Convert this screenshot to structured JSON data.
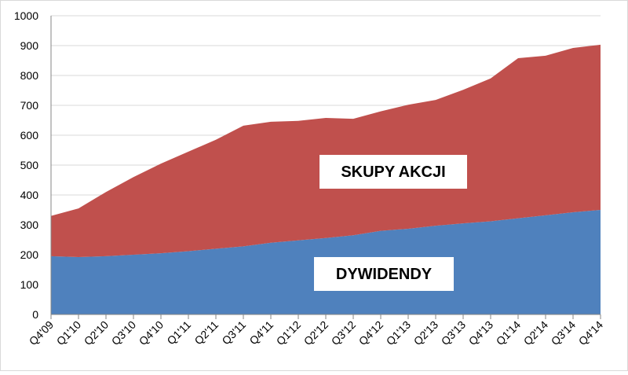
{
  "chart_data": {
    "type": "stacked-area",
    "categories": [
      "Q4'09",
      "Q1'10",
      "Q2'10",
      "Q3'10",
      "Q4'10",
      "Q1'11",
      "Q2'11",
      "Q3'11",
      "Q4'11",
      "Q1'12",
      "Q2'12",
      "Q3'12",
      "Q4'12",
      "Q1'13",
      "Q2'13",
      "Q3'13",
      "Q4'13",
      "Q1'14",
      "Q2'14",
      "Q3'14",
      "Q4'14"
    ],
    "series": [
      {
        "name": "DYWIDENDY",
        "color": "#4f81bd",
        "values": [
          195,
          192,
          195,
          200,
          205,
          212,
          220,
          228,
          240,
          248,
          256,
          265,
          280,
          287,
          297,
          305,
          312,
          322,
          332,
          342,
          350
        ]
      },
      {
        "name": "SKUPY AKCJI",
        "color": "#c0504d",
        "values": [
          135,
          163,
          215,
          260,
          300,
          333,
          365,
          404,
          405,
          400,
          402,
          390,
          400,
          415,
          421,
          447,
          478,
          536,
          534,
          550,
          553
        ]
      }
    ],
    "ylim": [
      0,
      1000
    ],
    "yticks": [
      0,
      100,
      200,
      300,
      400,
      500,
      600,
      700,
      800,
      900,
      1000
    ],
    "grid": true
  }
}
